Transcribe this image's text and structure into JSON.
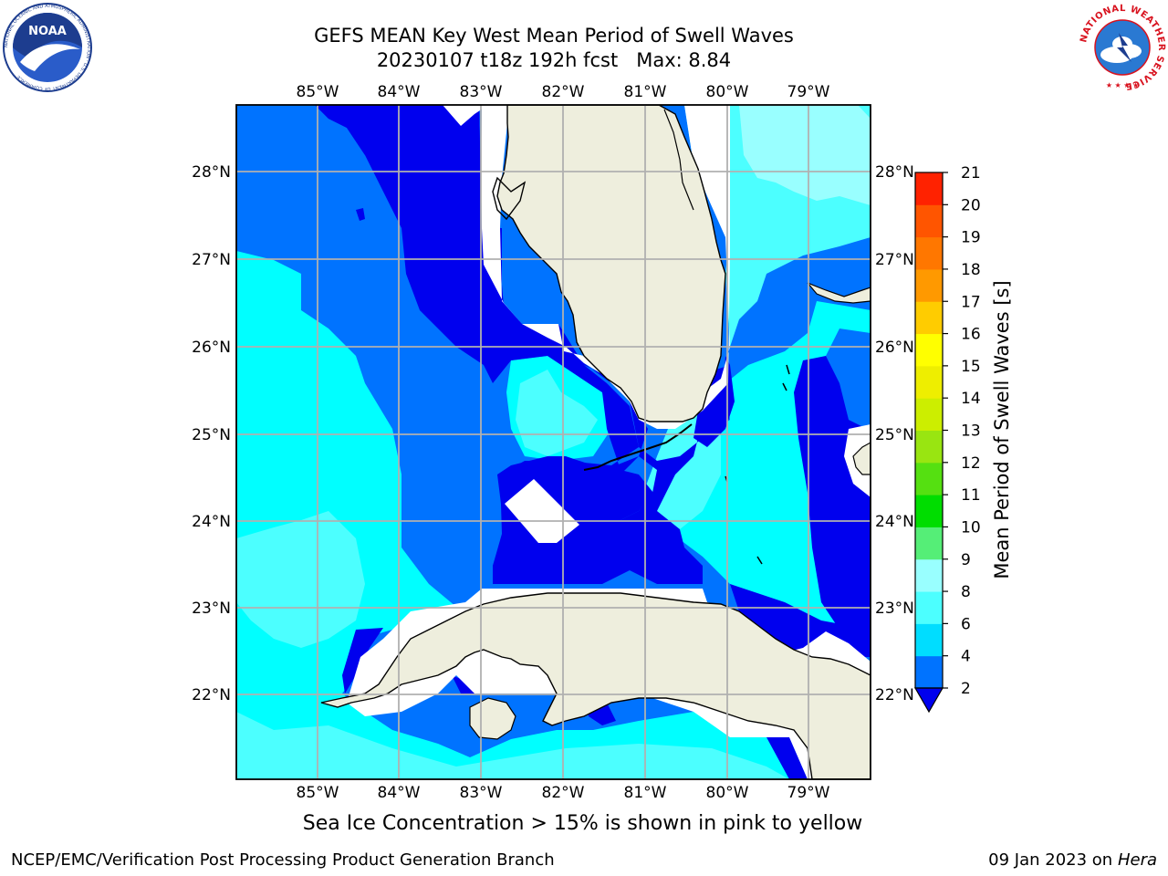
{
  "header": {
    "title_line1": "GEFS MEAN Key West Mean Period of Swell Waves",
    "title_line2": "20230107 t18z 192h fcst   Max: 8.84"
  },
  "logos": {
    "left": {
      "icon": "noaa-logo",
      "text": "NOAA",
      "ring_text": "NATIONAL OCEANIC AND ATMOSPHERIC ADMINISTRATION · U.S. DEPARTMENT OF COMMERCE"
    },
    "right": {
      "icon": "nws-logo",
      "ring_text": "NATIONAL WEATHER SERVICE"
    }
  },
  "map": {
    "lon_labels": [
      "85°W",
      "84°W",
      "83°W",
      "82°W",
      "81°W",
      "80°W",
      "79°W"
    ],
    "lat_labels": [
      "28°N",
      "27°N",
      "26°N",
      "25°N",
      "24°N",
      "23°N",
      "22°N"
    ],
    "land_color": "#eeeedd",
    "no_data_color": "#ffffff"
  },
  "colorbar": {
    "label": "Mean Period of Swell Waves [s]",
    "ticks": [
      "2",
      "4",
      "6",
      "8",
      "9",
      "10",
      "11",
      "12",
      "13",
      "14",
      "15",
      "16",
      "17",
      "18",
      "19",
      "20",
      "21"
    ],
    "colors": [
      "#0073ff",
      "#00ddff",
      "#4cffff",
      "#99ffff",
      "#55ee77",
      "#00dd00",
      "#55e011",
      "#99e511",
      "#ccee00",
      "#eeee00",
      "#ffff00",
      "#ffcc00",
      "#ff9900",
      "#ff7700",
      "#ff5500",
      "#ff2200"
    ],
    "under_color": "#0000ee"
  },
  "footer": {
    "sea_ice_note": "Sea Ice Concentration > 15% is shown in pink to yellow",
    "branch": "NCEP/EMC/Verification Post Processing Product Generation Branch",
    "date_prefix": "09 Jan 2023 on ",
    "host": "Hera"
  }
}
